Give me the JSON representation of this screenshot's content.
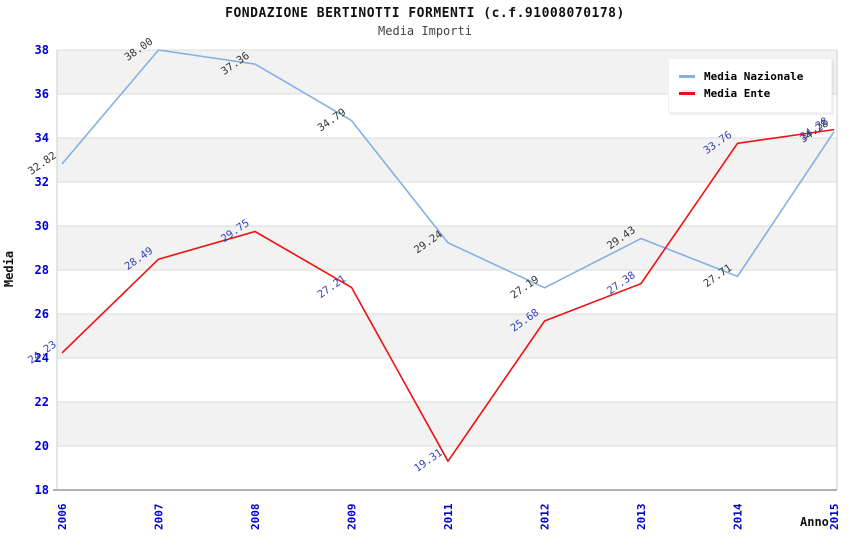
{
  "page": {
    "title": "FONDAZIONE BERTINOTTI FORMENTI (c.f.91008070178)",
    "subtitle": "Media Importi"
  },
  "axes": {
    "y_title": "Media",
    "x_title": "Anno",
    "y_ticks": [
      18,
      20,
      22,
      24,
      26,
      28,
      30,
      32,
      34,
      36,
      38
    ],
    "tick_label_color": "#0000cc"
  },
  "chart_data": {
    "type": "line",
    "title": "FONDAZIONE BERTINOTTI FORMENTI (c.f.91008070178)",
    "subtitle": "Media Importi",
    "xlabel": "Anno",
    "ylabel": "Media",
    "categories": [
      "2006",
      "2007",
      "2008",
      "2009",
      "2011",
      "2012",
      "2013",
      "2014",
      "2015"
    ],
    "series": [
      {
        "name": "Media Nazionale",
        "color": "#84b1e3",
        "label_color": "#333333",
        "values": [
          32.82,
          38.0,
          37.36,
          34.79,
          29.24,
          27.19,
          29.43,
          27.71,
          34.28
        ]
      },
      {
        "name": "Media Ente",
        "color": "#ee1111",
        "label_color": "#3344bb",
        "values": [
          24.23,
          28.49,
          29.75,
          27.21,
          19.31,
          25.68,
          27.38,
          33.76,
          34.38
        ]
      }
    ],
    "ylim": [
      18,
      38
    ],
    "y_tick_step": 2,
    "grid": "horizontal-bands-alternating",
    "band_color": "#f2f2f2",
    "gridline_color": "#dcdcdc",
    "edge_color": "#cccccc",
    "axisline_color": "#999999",
    "legend_position": "top-right",
    "point_labels_rotation_deg": -35
  }
}
